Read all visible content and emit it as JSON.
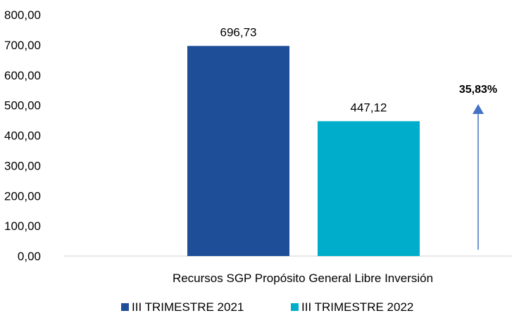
{
  "chart_data": {
    "type": "bar",
    "categories": [
      "Recursos SGP Propósito General Libre Inversión"
    ],
    "series": [
      {
        "name": "III TRIMESTRE 2021",
        "values": [
          696.73
        ],
        "color": "#1F4E99",
        "value_label": "696,73"
      },
      {
        "name": "III TRIMESTRE 2022",
        "values": [
          447.12
        ],
        "color": "#00AECB",
        "value_label": "447,12"
      }
    ],
    "ylim": [
      0,
      800
    ],
    "yticks": [
      0,
      100,
      200,
      300,
      400,
      500,
      600,
      700,
      800
    ],
    "ytick_labels": [
      "0,00",
      "100,00",
      "200,00",
      "300,00",
      "400,00",
      "500,00",
      "600,00",
      "700,00",
      "800,00"
    ],
    "grid": false,
    "legend_position": "bottom",
    "annotation": {
      "text": "35,83%",
      "arrow_direction": "up",
      "arrow_color": "#4472C4"
    },
    "title": "",
    "xlabel": "",
    "ylabel": ""
  }
}
